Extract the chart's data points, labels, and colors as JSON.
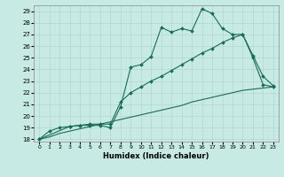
{
  "title": "",
  "xlabel": "Humidex (Indice chaleur)",
  "bg_color": "#c8eae4",
  "grid_color": "#b0d8d0",
  "line_color": "#1a6b5a",
  "xlim": [
    -0.5,
    23.5
  ],
  "ylim": [
    17.8,
    29.5
  ],
  "xticks": [
    0,
    1,
    2,
    3,
    4,
    5,
    6,
    7,
    8,
    9,
    10,
    11,
    12,
    13,
    14,
    15,
    16,
    17,
    18,
    19,
    20,
    21,
    22,
    23
  ],
  "yticks": [
    18,
    19,
    20,
    21,
    22,
    23,
    24,
    25,
    26,
    27,
    28,
    29
  ],
  "line1_x": [
    0,
    1,
    2,
    3,
    4,
    5,
    6,
    7,
    8,
    9,
    10,
    11,
    12,
    13,
    14,
    15,
    16,
    17,
    18,
    19,
    20,
    21,
    22,
    23
  ],
  "line1_y": [
    18,
    18.7,
    19.0,
    19.1,
    19.2,
    19.2,
    19.2,
    19.0,
    20.8,
    24.2,
    24.4,
    25.1,
    27.6,
    27.2,
    27.5,
    27.3,
    29.2,
    28.8,
    27.5,
    27.0,
    27.0,
    25.2,
    23.4,
    22.6
  ],
  "line2_x": [
    0,
    3,
    4,
    5,
    6,
    7,
    8,
    9,
    10,
    11,
    12,
    13,
    14,
    15,
    16,
    17,
    18,
    19,
    20,
    21,
    22,
    23
  ],
  "line2_y": [
    18,
    19.1,
    19.2,
    19.3,
    19.3,
    19.3,
    21.2,
    22.0,
    22.5,
    23.0,
    23.4,
    23.9,
    24.4,
    24.9,
    25.4,
    25.8,
    26.3,
    26.7,
    27.0,
    25.0,
    22.7,
    22.5
  ],
  "line3_x": [
    0,
    1,
    2,
    3,
    4,
    5,
    6,
    7,
    8,
    9,
    10,
    11,
    12,
    13,
    14,
    15,
    16,
    17,
    18,
    19,
    20,
    21,
    22,
    23
  ],
  "line3_y": [
    18,
    18.2,
    18.5,
    18.7,
    18.9,
    19.1,
    19.3,
    19.5,
    19.7,
    19.9,
    20.1,
    20.3,
    20.5,
    20.7,
    20.9,
    21.2,
    21.4,
    21.6,
    21.8,
    22.0,
    22.2,
    22.3,
    22.4,
    22.5
  ]
}
